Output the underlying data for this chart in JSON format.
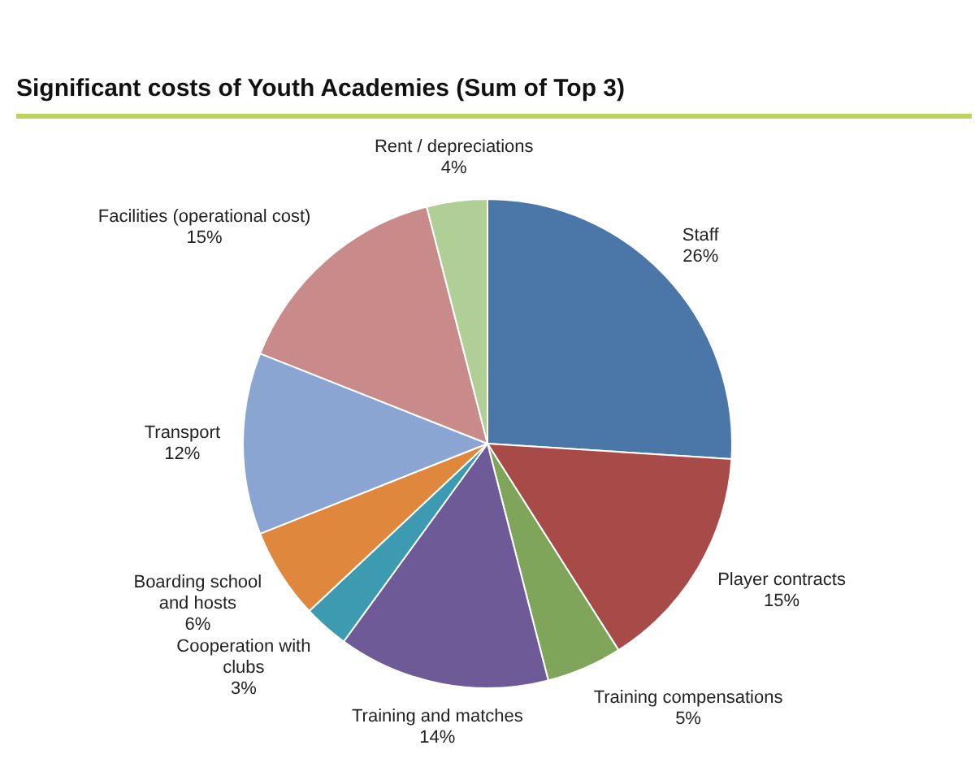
{
  "chart_data": {
    "type": "pie",
    "title": "Significant costs of Youth Academies (Sum of Top 3)",
    "categories": [
      "Staff",
      "Player contracts",
      "Training compensations",
      "Training and matches",
      "Cooperation with clubs",
      "Boarding school and hosts",
      "Transport",
      "Facilities (operational cost)",
      "Rent / depreciations"
    ],
    "values": [
      26,
      15,
      5,
      14,
      3,
      6,
      12,
      15,
      4
    ],
    "value_labels": [
      "26%",
      "15%",
      "5%",
      "14%",
      "3%",
      "6%",
      "12%",
      "15%",
      "4%"
    ],
    "colors": [
      "#4a76a8",
      "#a84a48",
      "#7fa55a",
      "#6e5a96",
      "#3c9bb0",
      "#e0873e",
      "#8aa5d2",
      "#c98a8a",
      "#b0cf97"
    ]
  }
}
